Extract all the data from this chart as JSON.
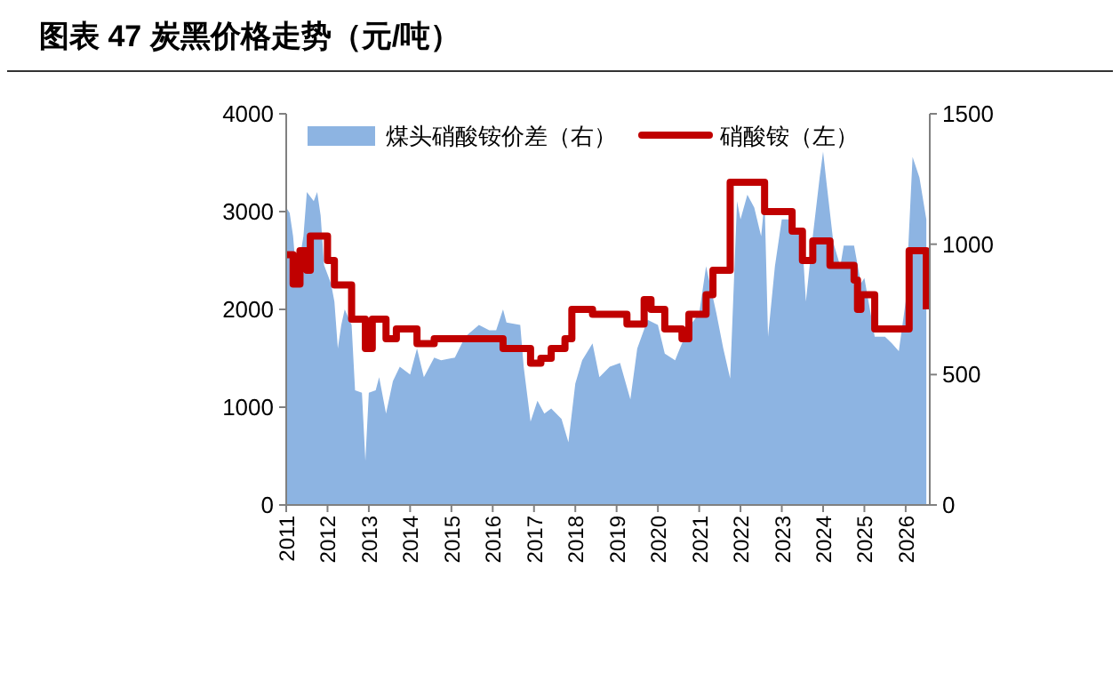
{
  "chart_data": {
    "type": "area",
    "title": "图表 47 炭黑价格走势（元/吨）",
    "xlim": [
      "2011-01",
      "2026-08"
    ],
    "xticks": [
      "2011",
      "2012",
      "2013",
      "2014",
      "2015",
      "2016",
      "2017",
      "2018",
      "2019",
      "2020",
      "2021",
      "2022",
      "2023",
      "2024",
      "2025",
      "2026"
    ],
    "ylim": [
      0,
      4000
    ],
    "yticks": [
      0,
      1000,
      2000,
      3000,
      4000
    ],
    "y2lim": [
      0,
      1500
    ],
    "y2ticks": [
      0,
      500,
      1000,
      1500
    ],
    "legend": "top",
    "series": [
      {
        "name": "煤头硝酸铵价差（右）",
        "axis": "y2",
        "color": "#8db4e2",
        "x": [
          "2011-01",
          "2011-02",
          "2011-03",
          "2011-04",
          "2011-06",
          "2011-07",
          "2011-09",
          "2011-10",
          "2011-11",
          "2011-12",
          "2012-02",
          "2012-03",
          "2012-04",
          "2012-05",
          "2012-06",
          "2012-08",
          "2012-09",
          "2012-11",
          "2012-12",
          "2013-01",
          "2013-03",
          "2013-04",
          "2013-06",
          "2013-08",
          "2013-10",
          "2014-01",
          "2014-03",
          "2014-05",
          "2014-08",
          "2014-10",
          "2015-02",
          "2015-05",
          "2015-09",
          "2015-12",
          "2016-02",
          "2016-04",
          "2016-05",
          "2016-09",
          "2016-10",
          "2016-12",
          "2017-02",
          "2017-04",
          "2017-06",
          "2017-09",
          "2017-11",
          "2018-01",
          "2018-03",
          "2018-06",
          "2018-08",
          "2018-11",
          "2019-02",
          "2019-05",
          "2019-07",
          "2019-10",
          "2020-01",
          "2020-03",
          "2020-06",
          "2020-08",
          "2020-11",
          "2021-01",
          "2021-03",
          "2021-06",
          "2021-08",
          "2021-10",
          "2021-12",
          "2022-01",
          "2022-03",
          "2022-05",
          "2022-07",
          "2022-08",
          "2022-09",
          "2022-11",
          "2023-01",
          "2023-04",
          "2023-07",
          "2023-08",
          "2023-10",
          "2023-12",
          "2024-01",
          "2024-02",
          "2024-04",
          "2024-06",
          "2024-07",
          "2024-10",
          "2024-12",
          "2025-01",
          "2025-04",
          "2025-07",
          "2025-09",
          "2025-11",
          "2026-01",
          "2026-03",
          "2026-05",
          "2026-07"
        ],
        "values": [
          1140,
          1120,
          1030,
          870,
          1030,
          1200,
          1165,
          1200,
          1110,
          920,
          850,
          780,
          600,
          690,
          750,
          690,
          440,
          430,
          170,
          430,
          440,
          490,
          350,
          475,
          530,
          500,
          600,
          490,
          565,
          555,
          565,
          645,
          690,
          670,
          670,
          750,
          700,
          690,
          530,
          320,
          400,
          350,
          370,
          330,
          240,
          465,
          555,
          620,
          490,
          530,
          545,
          405,
          600,
          710,
          690,
          580,
          555,
          620,
          700,
          735,
          915,
          735,
          600,
          485,
          1165,
          1095,
          1190,
          1140,
          1030,
          1165,
          645,
          915,
          1095,
          1095,
          1005,
          780,
          1030,
          1255,
          1355,
          1235,
          1005,
          915,
          995,
          995,
          850,
          870,
          645,
          645,
          620,
          590,
          780,
          1335,
          1255,
          1095
        ]
      },
      {
        "name": "硝酸铵（左）",
        "type": "step",
        "color": "#c00000",
        "x": [
          "2011-01",
          "2011-03",
          "2011-05",
          "2011-07",
          "2011-08",
          "2012-01",
          "2012-03",
          "2012-08",
          "2012-12",
          "2013-02",
          "2013-06",
          "2013-09",
          "2014-03",
          "2014-08",
          "2016-04",
          "2016-12",
          "2017-03",
          "2017-06",
          "2017-10",
          "2017-12",
          "2018-06",
          "2019-04",
          "2019-09",
          "2019-11",
          "2020-03",
          "2020-08",
          "2020-10",
          "2021-03",
          "2021-05",
          "2021-10",
          "2022-08",
          "2023-04",
          "2023-07",
          "2023-10",
          "2024-03",
          "2024-10",
          "2024-11",
          "2024-12",
          "2025-04",
          "2026-02",
          "2026-07"
        ],
        "values": [
          2560,
          2260,
          2600,
          2400,
          2750,
          2500,
          2250,
          1900,
          1600,
          1900,
          1700,
          1800,
          1650,
          1700,
          1600,
          1450,
          1500,
          1600,
          1700,
          2000,
          1950,
          1850,
          2100,
          2000,
          1800,
          1700,
          1950,
          2150,
          2400,
          3300,
          3000,
          2800,
          2500,
          2700,
          2450,
          2300,
          2000,
          2150,
          1800,
          2600,
          2000
        ]
      }
    ]
  }
}
